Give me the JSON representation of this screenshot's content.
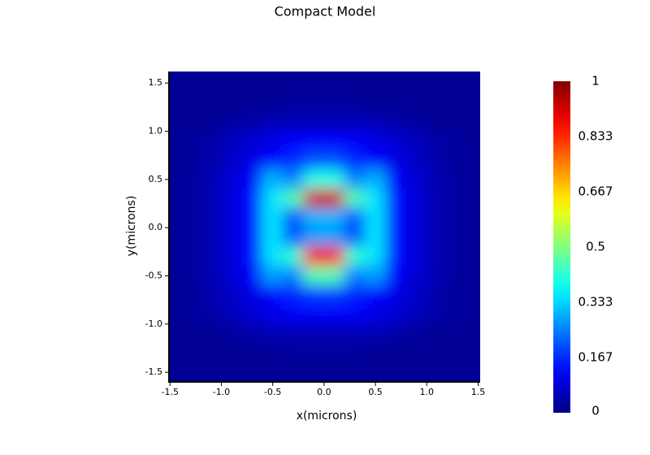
{
  "chart_data": {
    "type": "heatmap",
    "title": "Compact Model",
    "x_label": "x(microns)",
    "y_label": "y(microns)",
    "colormap": "jet",
    "x": [
      -1.5,
      -1.3,
      -1.1,
      -0.9,
      -0.7,
      -0.5,
      -0.3,
      -0.1,
      0.1,
      0.3,
      0.5,
      0.7,
      0.9,
      1.1,
      1.3,
      1.5
    ],
    "y": [
      1.5,
      1.3,
      1.1,
      0.9,
      0.7,
      0.5,
      0.3,
      0.1,
      -0.1,
      -0.3,
      -0.5,
      -0.7,
      -0.9,
      -1.1,
      -1.3,
      -1.5
    ],
    "z": [
      [
        0.02,
        0.02,
        0.02,
        0.02,
        0.02,
        0.02,
        0.02,
        0.02,
        0.02,
        0.02,
        0.02,
        0.02,
        0.02,
        0.02,
        0.02,
        0.02
      ],
      [
        0.02,
        0.02,
        0.02,
        0.02,
        0.02,
        0.02,
        0.03,
        0.03,
        0.03,
        0.03,
        0.02,
        0.02,
        0.02,
        0.02,
        0.02,
        0.02
      ],
      [
        0.02,
        0.02,
        0.02,
        0.03,
        0.04,
        0.05,
        0.05,
        0.05,
        0.05,
        0.05,
        0.05,
        0.04,
        0.03,
        0.02,
        0.02,
        0.02
      ],
      [
        0.02,
        0.03,
        0.04,
        0.06,
        0.08,
        0.1,
        0.12,
        0.12,
        0.12,
        0.12,
        0.1,
        0.08,
        0.06,
        0.04,
        0.03,
        0.02
      ],
      [
        0.02,
        0.03,
        0.04,
        0.07,
        0.1,
        0.13,
        0.16,
        0.2,
        0.2,
        0.16,
        0.13,
        0.1,
        0.07,
        0.04,
        0.03,
        0.02
      ],
      [
        0.02,
        0.03,
        0.05,
        0.08,
        0.12,
        0.3,
        0.25,
        0.4,
        0.4,
        0.25,
        0.3,
        0.12,
        0.08,
        0.05,
        0.03,
        0.02
      ],
      [
        0.02,
        0.03,
        0.05,
        0.09,
        0.14,
        0.35,
        0.45,
        0.92,
        0.92,
        0.45,
        0.35,
        0.14,
        0.09,
        0.05,
        0.03,
        0.02
      ],
      [
        0.02,
        0.03,
        0.05,
        0.09,
        0.14,
        0.35,
        0.2,
        0.3,
        0.3,
        0.2,
        0.35,
        0.14,
        0.09,
        0.05,
        0.03,
        0.02
      ],
      [
        0.02,
        0.03,
        0.05,
        0.09,
        0.14,
        0.35,
        0.2,
        0.28,
        0.28,
        0.2,
        0.35,
        0.14,
        0.09,
        0.05,
        0.03,
        0.02
      ],
      [
        0.02,
        0.03,
        0.05,
        0.09,
        0.14,
        0.35,
        0.42,
        0.88,
        0.88,
        0.42,
        0.35,
        0.14,
        0.09,
        0.05,
        0.03,
        0.02
      ],
      [
        0.02,
        0.03,
        0.05,
        0.08,
        0.12,
        0.28,
        0.25,
        0.45,
        0.45,
        0.25,
        0.28,
        0.12,
        0.08,
        0.05,
        0.03,
        0.02
      ],
      [
        0.02,
        0.03,
        0.04,
        0.07,
        0.1,
        0.13,
        0.16,
        0.18,
        0.18,
        0.16,
        0.13,
        0.1,
        0.07,
        0.04,
        0.03,
        0.02
      ],
      [
        0.02,
        0.03,
        0.04,
        0.06,
        0.08,
        0.1,
        0.12,
        0.12,
        0.12,
        0.12,
        0.1,
        0.08,
        0.06,
        0.04,
        0.03,
        0.02
      ],
      [
        0.02,
        0.02,
        0.02,
        0.03,
        0.04,
        0.05,
        0.05,
        0.05,
        0.05,
        0.05,
        0.05,
        0.04,
        0.03,
        0.02,
        0.02,
        0.02
      ],
      [
        0.02,
        0.02,
        0.02,
        0.02,
        0.02,
        0.02,
        0.03,
        0.03,
        0.03,
        0.03,
        0.02,
        0.02,
        0.02,
        0.02,
        0.02,
        0.02
      ],
      [
        0.02,
        0.02,
        0.02,
        0.02,
        0.02,
        0.02,
        0.02,
        0.02,
        0.02,
        0.02,
        0.02,
        0.02,
        0.02,
        0.02,
        0.02,
        0.02
      ]
    ],
    "xlim": [
      -1.51,
      1.52
    ],
    "ylim": [
      -1.6,
      1.62
    ],
    "xticks": [
      -1.5,
      {
        "value": -1,
        "label": "-1.0"
      },
      -0.5,
      {
        "value": 0,
        "label": "0.0"
      },
      0.5,
      {
        "value": 1,
        "label": "1.0"
      },
      1.5
    ],
    "yticks": [
      -1.5,
      {
        "value": -1,
        "label": "-1.0"
      },
      -0.5,
      {
        "value": 0,
        "label": "0.0"
      },
      0.5,
      {
        "value": 1,
        "label": "1.0"
      },
      1.5
    ],
    "zlim": [
      0,
      1
    ],
    "zticks": [
      0,
      0.167,
      0.333,
      0.5,
      0.667,
      0.833,
      1
    ]
  }
}
